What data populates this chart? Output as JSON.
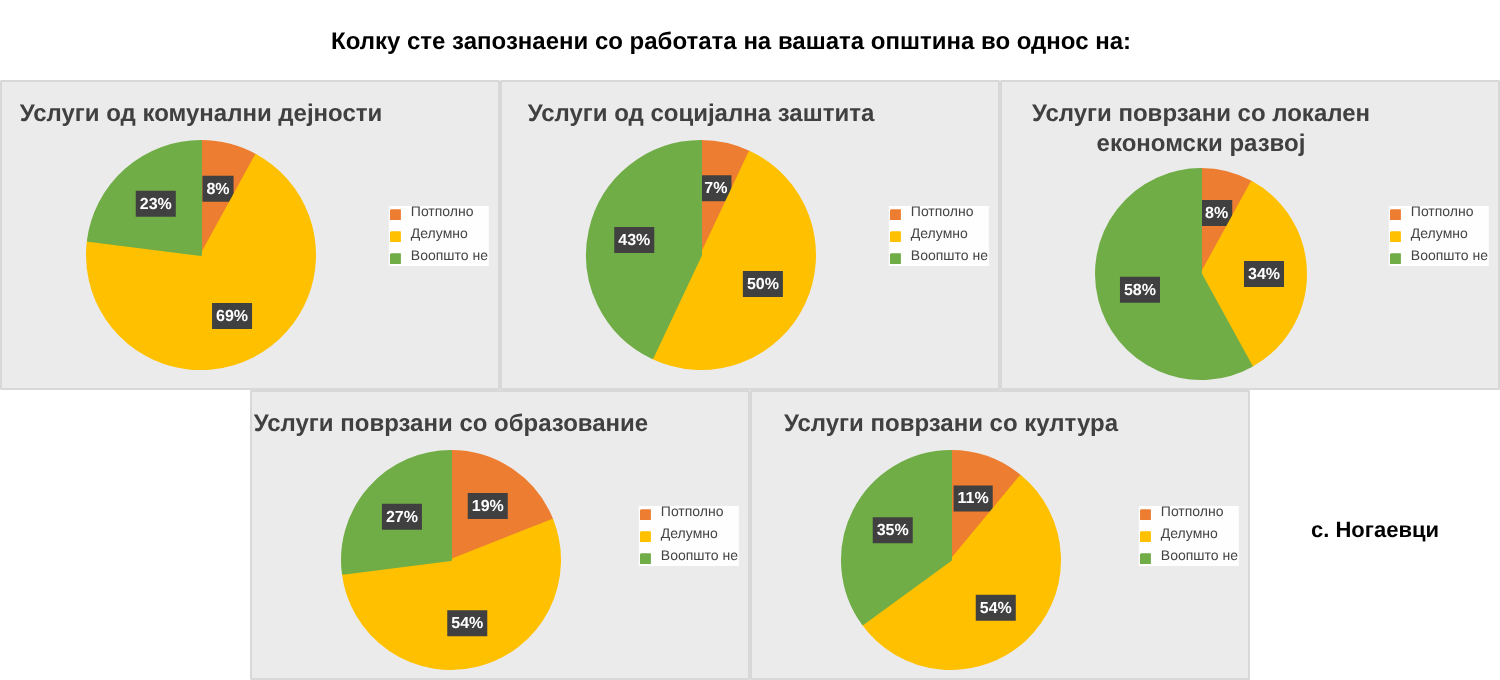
{
  "chart_data": [
    {
      "type": "other",
      "title": "Колку сте запознаени со работата на вашата општина во однос на:",
      "annotations": [
        "с. Ногаевци"
      ]
    },
    {
      "type": "pie",
      "title": "Услуги од комунални дејности",
      "categories": [
        "Потполно",
        "Делумно",
        "Воопшто не"
      ],
      "values": [
        8,
        69,
        23
      ],
      "value_labels": [
        "8%",
        "69%",
        "23%"
      ],
      "colors": [
        "#ed7d31",
        "#ffc000",
        "#70ad47"
      ],
      "legend": "right"
    },
    {
      "type": "pie",
      "title": "Услуги од социјална заштита",
      "categories": [
        "Потполно",
        "Делумно",
        "Воопшто не"
      ],
      "values": [
        7,
        50,
        43
      ],
      "value_labels": [
        "7%",
        "50%",
        "43%"
      ],
      "colors": [
        "#ed7d31",
        "#ffc000",
        "#70ad47"
      ],
      "legend": "right"
    },
    {
      "type": "pie",
      "title": "Услуги поврзани со локален економски развој",
      "categories": [
        "Потполно",
        "Делумно",
        "Воопшто не"
      ],
      "values": [
        8,
        34,
        58
      ],
      "value_labels": [
        "8%",
        "34%",
        "58%"
      ],
      "colors": [
        "#ed7d31",
        "#ffc000",
        "#70ad47"
      ],
      "legend": "right"
    },
    {
      "type": "pie",
      "title": "Услуги поврзани со образование",
      "categories": [
        "Потполно",
        "Делумно",
        "Воопшто не"
      ],
      "values": [
        19,
        54,
        27
      ],
      "value_labels": [
        "19%",
        "54%",
        "27%"
      ],
      "colors": [
        "#ed7d31",
        "#ffc000",
        "#70ad47"
      ],
      "legend": "right"
    },
    {
      "type": "pie",
      "title": "Услуги поврзани со култура",
      "categories": [
        "Потполно",
        "Делумно",
        "Воопшто не"
      ],
      "values": [
        11,
        54,
        35
      ],
      "value_labels": [
        "11%",
        "54%",
        "35%"
      ],
      "colors": [
        "#ed7d31",
        "#ffc000",
        "#70ad47"
      ],
      "legend": "right"
    }
  ]
}
